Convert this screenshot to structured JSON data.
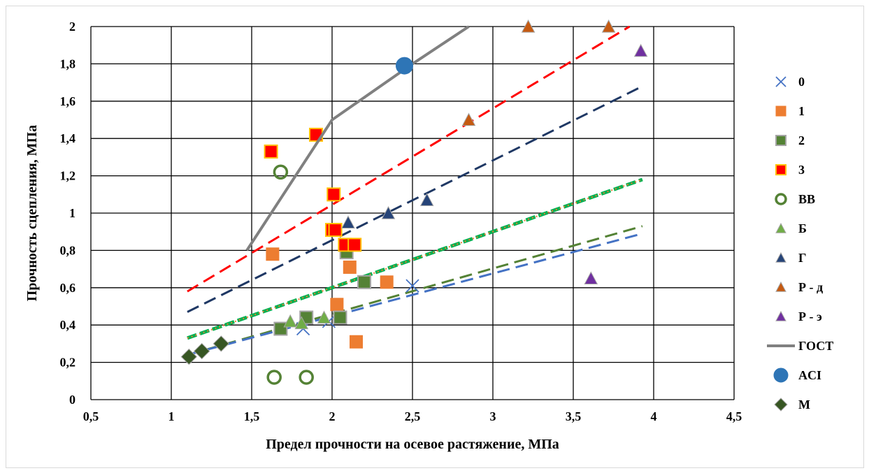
{
  "chart_data": {
    "type": "scatter",
    "title": "",
    "xlabel": "Предел прочности на осевое растяжение, МПа",
    "ylabel": "Прочность сцепления, МПа",
    "xlim": [
      0.5,
      4.5
    ],
    "ylim": [
      0,
      2
    ],
    "x_ticks": [
      0.5,
      1,
      1.5,
      2,
      2.5,
      3,
      3.5,
      4,
      4.5
    ],
    "y_ticks": [
      0,
      0.2,
      0.4,
      0.6,
      0.8,
      1,
      1.2,
      1.4,
      1.6,
      1.8,
      2
    ],
    "x_tick_labels": [
      "0,5",
      "1",
      "1,5",
      "2",
      "2,5",
      "3",
      "3,5",
      "4",
      "4,5"
    ],
    "y_tick_labels": [
      "0",
      "0,2",
      "0,4",
      "0,6",
      "0,8",
      "1",
      "1,2",
      "1,4",
      "1,6",
      "1,8",
      "2"
    ],
    "grid": "vertical and horizontal major gridlines",
    "legend_position": "right",
    "series": [
      {
        "name": "0",
        "marker": "x",
        "color": "#4472c4",
        "points": [
          [
            1.82,
            0.38
          ],
          [
            1.98,
            0.42
          ],
          [
            2.5,
            0.61
          ]
        ]
      },
      {
        "name": "1",
        "marker": "square",
        "color": "#ed7d31",
        "points": [
          [
            1.63,
            0.78
          ],
          [
            2.03,
            0.51
          ],
          [
            2.11,
            0.71
          ],
          [
            2.15,
            0.31
          ],
          [
            2.34,
            0.63
          ]
        ]
      },
      {
        "name": "2",
        "marker": "square",
        "color": "#548235",
        "stroke": "#a5a5a5",
        "points": [
          [
            1.68,
            0.38
          ],
          [
            1.84,
            0.44
          ],
          [
            2.05,
            0.44
          ],
          [
            2.09,
            0.79
          ],
          [
            2.2,
            0.63
          ]
        ]
      },
      {
        "name": "3",
        "marker": "square",
        "color": "#ff0000",
        "stroke": "#ffc000",
        "points": [
          [
            1.62,
            1.33
          ],
          [
            1.9,
            1.42
          ],
          [
            2.01,
            1.1
          ],
          [
            2.0,
            0.91
          ],
          [
            2.02,
            0.91
          ],
          [
            2.08,
            0.83
          ],
          [
            2.14,
            0.83
          ]
        ]
      },
      {
        "name": "ВВ",
        "marker": "circle-open",
        "color": "#548235",
        "points": [
          [
            1.68,
            1.22
          ],
          [
            1.64,
            0.12
          ],
          [
            1.84,
            0.12
          ]
        ]
      },
      {
        "name": "Б",
        "marker": "triangle",
        "color": "#70ad47",
        "points": [
          [
            1.74,
            0.42
          ],
          [
            1.81,
            0.41
          ],
          [
            1.95,
            0.44
          ]
        ]
      },
      {
        "name": "Г",
        "marker": "triangle",
        "color": "#264478",
        "points": [
          [
            2.1,
            0.95
          ],
          [
            2.35,
            1.0
          ],
          [
            2.59,
            1.07
          ]
        ]
      },
      {
        "name": "Р - д",
        "marker": "triangle",
        "color": "#c55a11",
        "points": [
          [
            2.85,
            1.5
          ],
          [
            3.22,
            2.0
          ],
          [
            3.72,
            2.0
          ]
        ]
      },
      {
        "name": "Р - э",
        "marker": "triangle",
        "color": "#7030a0",
        "points": [
          [
            3.61,
            0.65
          ],
          [
            3.92,
            1.87
          ]
        ]
      },
      {
        "name": "ГОСТ",
        "marker": "line",
        "color": "#808080",
        "points": [
          [
            1.47,
            0.8
          ],
          [
            2.0,
            1.5
          ],
          [
            2.5,
            1.8
          ],
          [
            2.85,
            2.0
          ]
        ]
      },
      {
        "name": "ACI",
        "marker": "circle",
        "color": "#2e75b6",
        "points": [
          [
            2.45,
            1.79
          ]
        ]
      },
      {
        "name": "М",
        "marker": "diamond",
        "color": "#375623",
        "points": [
          [
            1.11,
            0.23
          ],
          [
            1.19,
            0.26
          ],
          [
            1.31,
            0.3
          ]
        ]
      }
    ],
    "trendlines": [
      {
        "color": "#ff0000",
        "dash": "dashed",
        "points": [
          [
            1.1,
            0.58
          ],
          [
            3.85,
            2.0
          ]
        ]
      },
      {
        "color": "#1f3864",
        "dash": "dashed",
        "points": [
          [
            1.1,
            0.47
          ],
          [
            3.93,
            1.68
          ]
        ]
      },
      {
        "color": "#00b050",
        "dash": "thick-dashed",
        "points": [
          [
            1.1,
            0.33
          ],
          [
            3.93,
            1.18
          ]
        ]
      },
      {
        "color": "#ed7d31",
        "dash": "dotted",
        "points": [
          [
            1.1,
            0.33
          ],
          [
            3.93,
            1.18
          ]
        ]
      },
      {
        "color": "#548235",
        "dash": "dashed",
        "points": [
          [
            1.1,
            0.24
          ],
          [
            3.93,
            0.93
          ]
        ]
      },
      {
        "color": "#4472c4",
        "dash": "dashed",
        "points": [
          [
            1.1,
            0.24
          ],
          [
            3.93,
            0.89
          ]
        ]
      }
    ]
  }
}
